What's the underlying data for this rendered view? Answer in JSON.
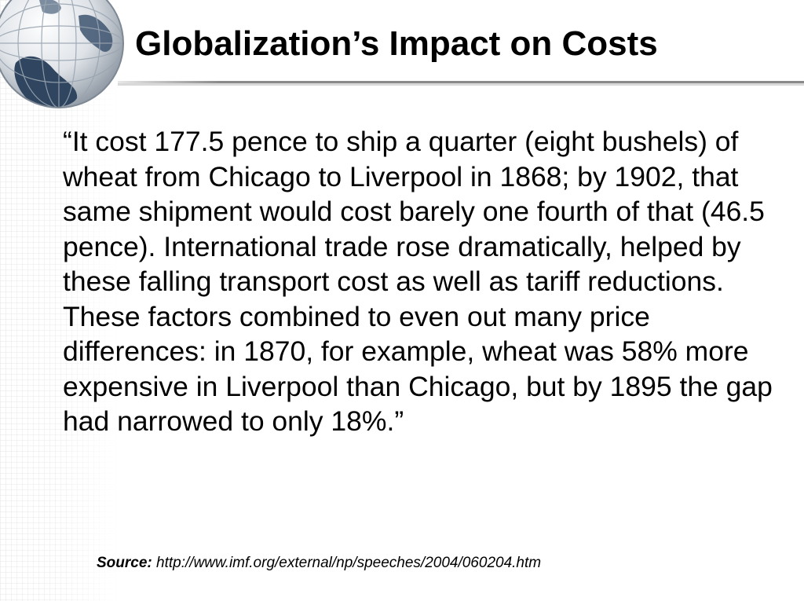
{
  "slide": {
    "title": "Globalization’s Impact on Costs",
    "quote": "“It cost 177.5 pence to ship a quarter (eight bushels) of wheat from Chicago to Liverpool in 1868; by 1902, that same shipment would cost barely one fourth of that (46.5 pence). International trade rose dramatically, helped by these falling transport cost as well as tariff reductions. These factors combined to even out many price differences: in 1870, for example, wheat was 58% more expensive in Liverpool than Chicago, but by 1895 the gap had narrowed to only 18%.”",
    "source": {
      "label": "Source:",
      "url": "http://www.imf.org/external/np/speeches/2004/060204.htm"
    }
  },
  "decor": {
    "globe_icon": "globe-icon",
    "globe_ocean_color": "#2f4560",
    "grid_color": "#e6e6e6",
    "rule_color": "#8a8a8a"
  }
}
